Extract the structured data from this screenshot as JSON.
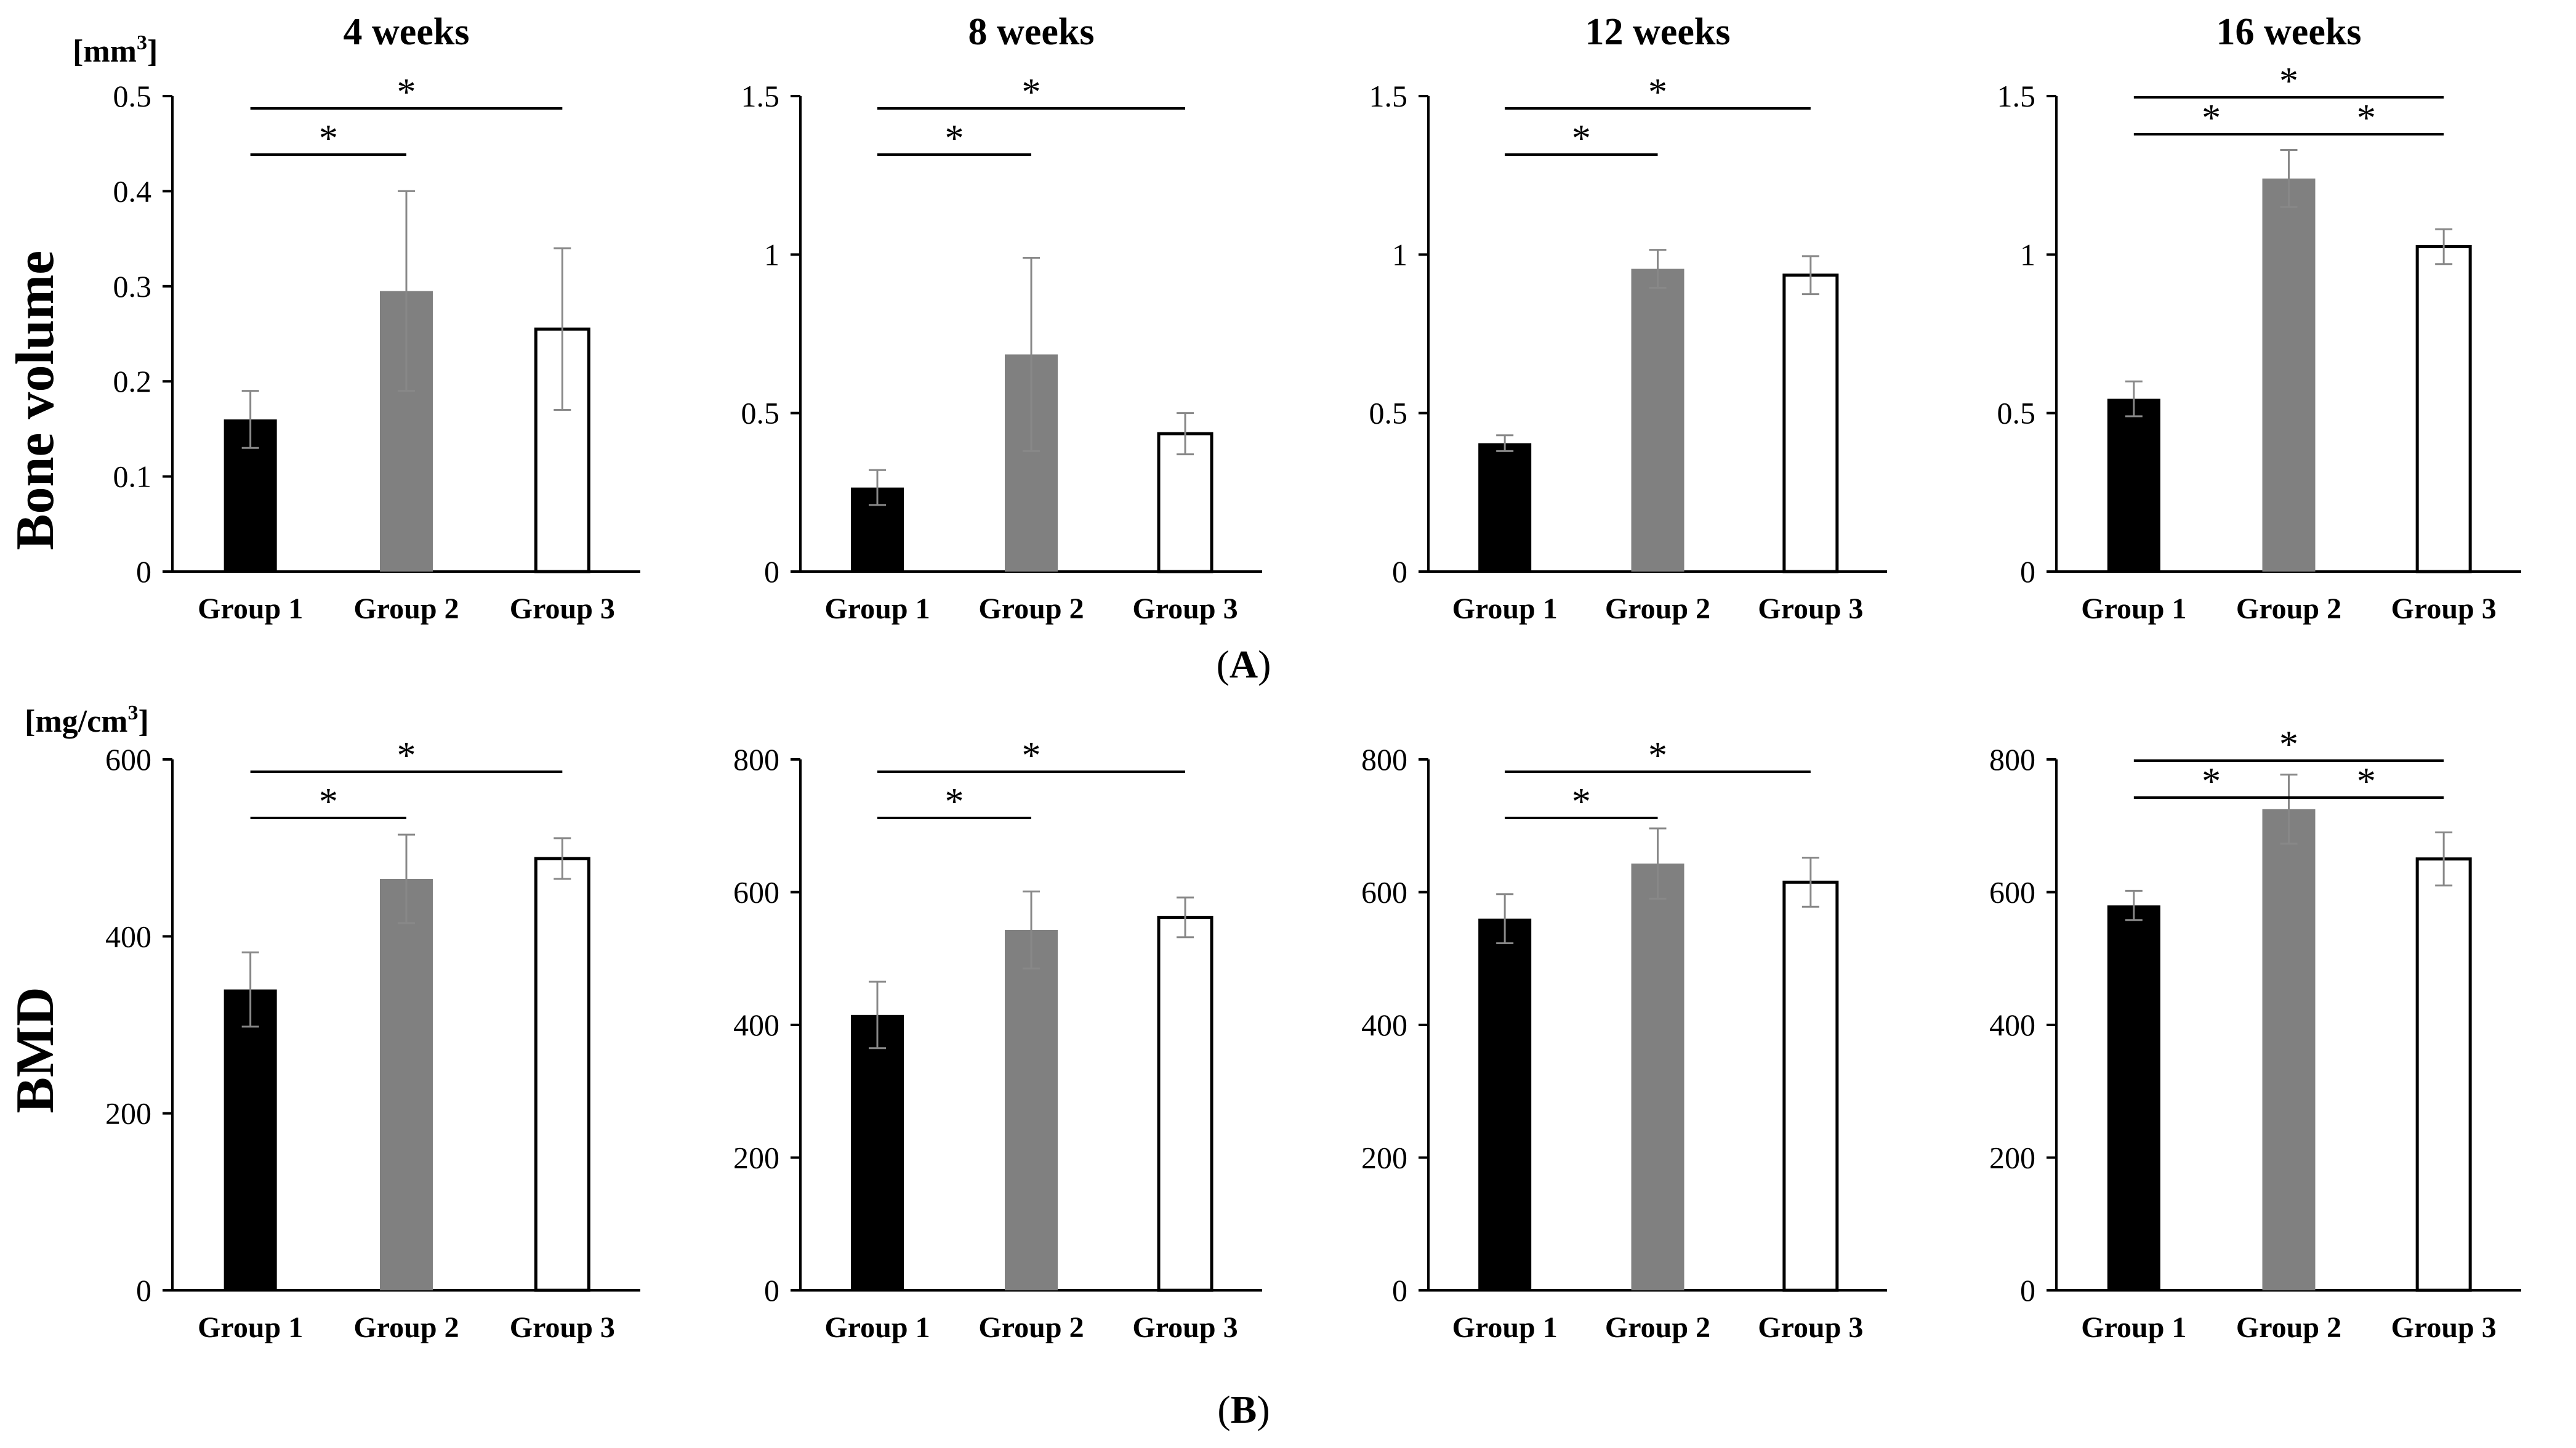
{
  "figure": {
    "row_labels": [
      "Bone volume",
      "BMD"
    ],
    "panel_labels": [
      {
        "open": "(",
        "letter": "A",
        "close": ")"
      },
      {
        "open": "(",
        "letter": "B",
        "close": ")"
      }
    ],
    "units": [
      {
        "base": "[mm",
        "sup": "3",
        "close": "]"
      },
      {
        "base": "[mg/cm",
        "sup": "3",
        "close": "]"
      }
    ],
    "colors": {
      "group1": "#000000",
      "group2": "#808080",
      "group3": "#ffffff",
      "axis": "#000000",
      "error": "#888888"
    }
  },
  "chart_data": [
    {
      "type": "bar",
      "title": "4 weeks",
      "ylabel": "Bone volume",
      "unit": "[mm3]",
      "categories": [
        "Group 1",
        "Group 2",
        "Group 3"
      ],
      "values": [
        0.16,
        0.295,
        0.255
      ],
      "errors": [
        0.03,
        0.105,
        0.085
      ],
      "ylim": [
        0,
        0.5
      ],
      "yticks": [
        0,
        0.1,
        0.2,
        0.3,
        0.4,
        0.5
      ],
      "ytick_labels": [
        "0",
        "0.1",
        "0.2",
        "0.3",
        "0.4",
        "0.5"
      ],
      "significance": [
        {
          "from": 0,
          "to": 1,
          "label": "*"
        },
        {
          "from": 0,
          "to": 2,
          "label": "*"
        }
      ]
    },
    {
      "type": "bar",
      "title": "8 weeks",
      "ylabel": "Bone volume",
      "categories": [
        "Group 1",
        "Group 2",
        "Group 3"
      ],
      "values": [
        0.265,
        0.685,
        0.435
      ],
      "errors": [
        0.055,
        0.305,
        0.065
      ],
      "ylim": [
        0,
        1.5
      ],
      "yticks": [
        0,
        0.5,
        1,
        1.5
      ],
      "ytick_labels": [
        "0",
        "0.5",
        "1",
        "1.5"
      ],
      "significance": [
        {
          "from": 0,
          "to": 1,
          "label": "*"
        },
        {
          "from": 0,
          "to": 2,
          "label": "*"
        }
      ]
    },
    {
      "type": "bar",
      "title": "12 weeks",
      "ylabel": "Bone volume",
      "categories": [
        "Group 1",
        "Group 2",
        "Group 3"
      ],
      "values": [
        0.405,
        0.955,
        0.935
      ],
      "errors": [
        0.025,
        0.06,
        0.06
      ],
      "ylim": [
        0,
        1.5
      ],
      "yticks": [
        0,
        0.5,
        1,
        1.5
      ],
      "ytick_labels": [
        "0",
        "0.5",
        "1",
        "1.5"
      ],
      "significance": [
        {
          "from": 0,
          "to": 1,
          "label": "*"
        },
        {
          "from": 0,
          "to": 2,
          "label": "*"
        }
      ]
    },
    {
      "type": "bar",
      "title": "16 weeks",
      "ylabel": "Bone volume",
      "categories": [
        "Group 1",
        "Group 2",
        "Group 3"
      ],
      "values": [
        0.545,
        1.24,
        1.025
      ],
      "errors": [
        0.055,
        0.09,
        0.055
      ],
      "ylim": [
        0,
        1.5
      ],
      "yticks": [
        0,
        0.5,
        1,
        1.5
      ],
      "ytick_labels": [
        "0",
        "0.5",
        "1",
        "1.5"
      ],
      "significance": [
        {
          "from": 0,
          "to": 1,
          "label": "*"
        },
        {
          "from": 1,
          "to": 2,
          "label": "*"
        },
        {
          "from": 0,
          "to": 2,
          "label": "*"
        }
      ]
    },
    {
      "type": "bar",
      "title": "",
      "ylabel": "BMD",
      "unit": "[mg/cm3]",
      "categories": [
        "Group 1",
        "Group 2",
        "Group 3"
      ],
      "values": [
        340,
        465,
        488
      ],
      "errors": [
        42,
        50,
        23
      ],
      "ylim": [
        0,
        600
      ],
      "yticks": [
        0,
        200,
        400,
        600
      ],
      "ytick_labels": [
        "0",
        "200",
        "400",
        "600"
      ],
      "significance": [
        {
          "from": 0,
          "to": 1,
          "label": "*"
        },
        {
          "from": 0,
          "to": 2,
          "label": "*"
        }
      ]
    },
    {
      "type": "bar",
      "title": "",
      "ylabel": "BMD",
      "categories": [
        "Group 1",
        "Group 2",
        "Group 3"
      ],
      "values": [
        415,
        543,
        562
      ],
      "errors": [
        50,
        58,
        30
      ],
      "ylim": [
        0,
        800
      ],
      "yticks": [
        0,
        200,
        400,
        600,
        800
      ],
      "ytick_labels": [
        "0",
        "200",
        "400",
        "600",
        "800"
      ],
      "significance": [
        {
          "from": 0,
          "to": 1,
          "label": "*"
        },
        {
          "from": 0,
          "to": 2,
          "label": "*"
        }
      ]
    },
    {
      "type": "bar",
      "title": "",
      "ylabel": "BMD",
      "categories": [
        "Group 1",
        "Group 2",
        "Group 3"
      ],
      "values": [
        560,
        643,
        615
      ],
      "errors": [
        37,
        53,
        37
      ],
      "ylim": [
        0,
        800
      ],
      "yticks": [
        0,
        200,
        400,
        600,
        800
      ],
      "ytick_labels": [
        "0",
        "200",
        "400",
        "600",
        "800"
      ],
      "significance": [
        {
          "from": 0,
          "to": 1,
          "label": "*"
        },
        {
          "from": 0,
          "to": 2,
          "label": "*"
        }
      ]
    },
    {
      "type": "bar",
      "title": "",
      "ylabel": "BMD",
      "categories": [
        "Group 1",
        "Group 2",
        "Group 3"
      ],
      "values": [
        580,
        725,
        650
      ],
      "errors": [
        22,
        52,
        40
      ],
      "ylim": [
        0,
        800
      ],
      "yticks": [
        0,
        200,
        400,
        600,
        800
      ],
      "ytick_labels": [
        "0",
        "200",
        "400",
        "600",
        "800"
      ],
      "significance": [
        {
          "from": 0,
          "to": 1,
          "label": "*"
        },
        {
          "from": 1,
          "to": 2,
          "label": "*"
        },
        {
          "from": 0,
          "to": 2,
          "label": "*"
        }
      ]
    }
  ]
}
